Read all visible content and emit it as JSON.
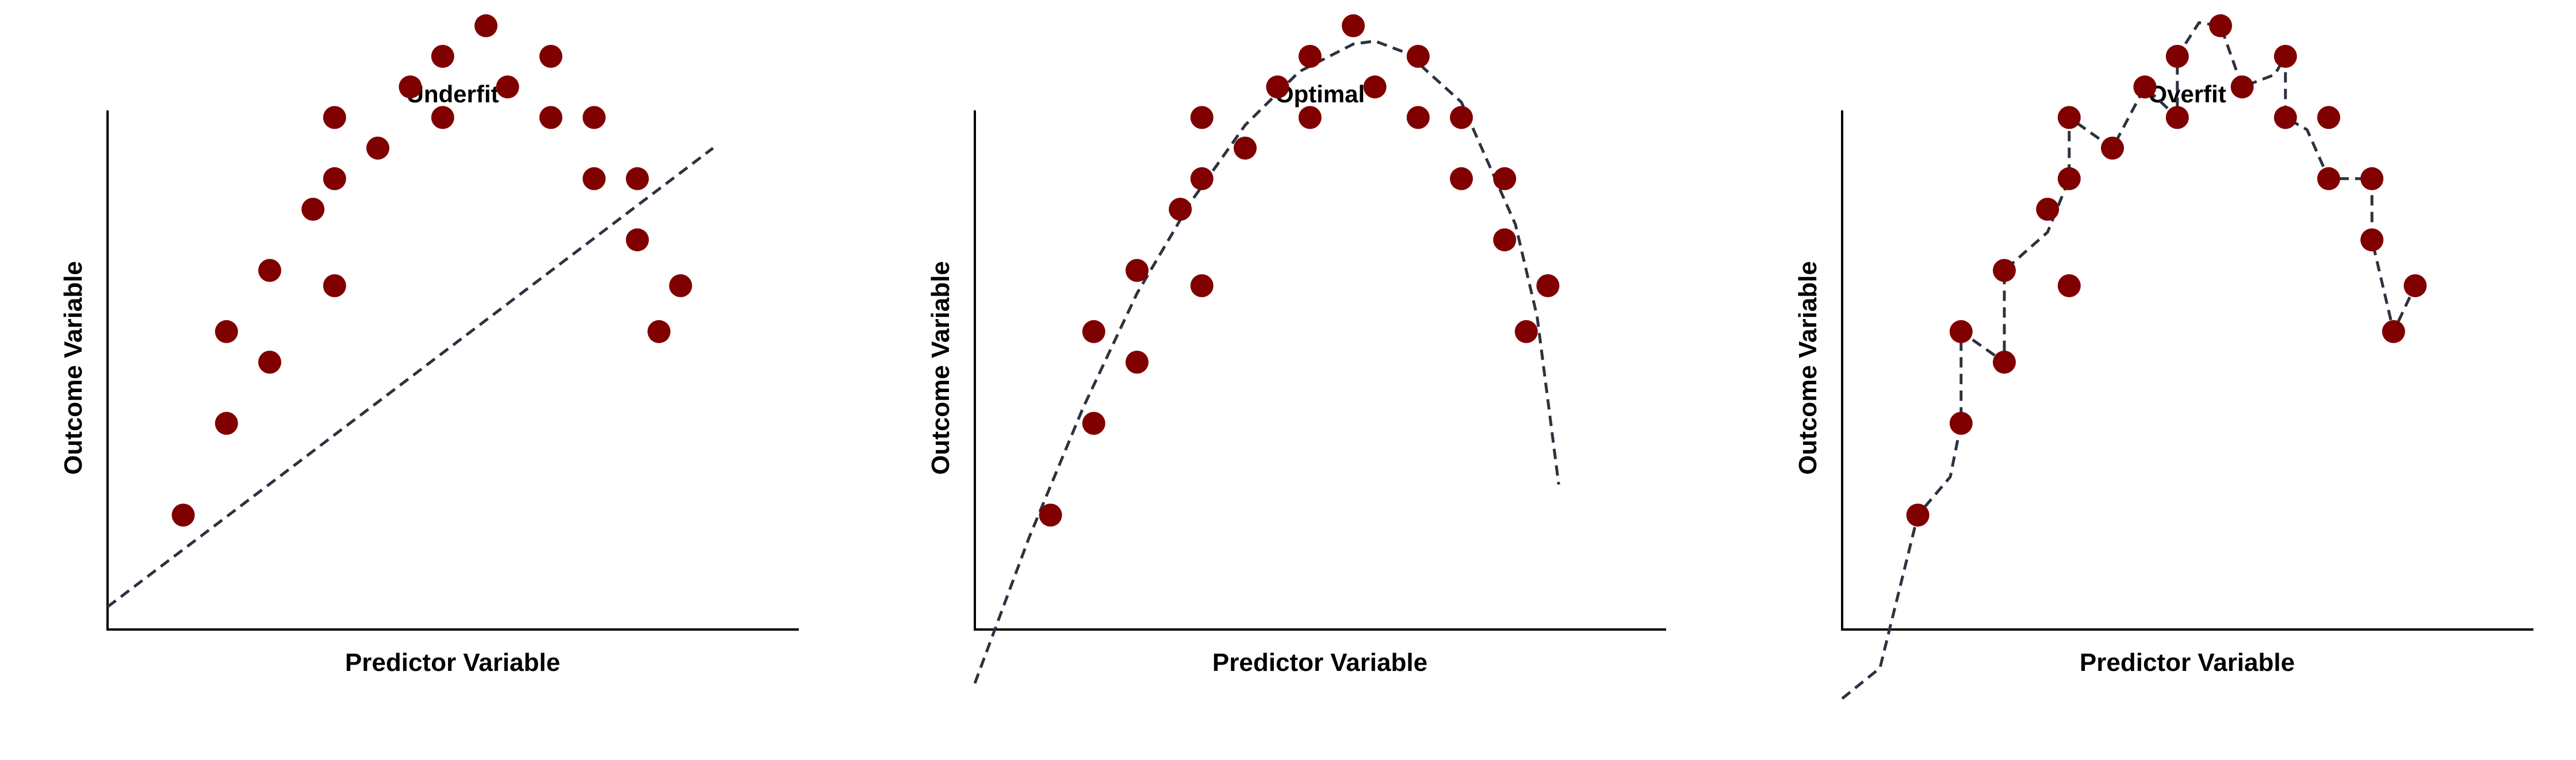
{
  "figure": {
    "point_color": "#800000",
    "curve_color": "#2b3340",
    "axis_color": "#000000"
  },
  "chart_data": [
    {
      "type": "scatter",
      "title": "Underfit",
      "xlabel": "Predictor Variable",
      "ylabel": "Outcome Variable",
      "points": [
        [
          0.7,
          1.5
        ],
        [
          1.1,
          2.1
        ],
        [
          1.1,
          2.7
        ],
        [
          1.5,
          2.5
        ],
        [
          1.5,
          3.1
        ],
        [
          1.9,
          3.5
        ],
        [
          2.1,
          3.0
        ],
        [
          2.1,
          3.7
        ],
        [
          2.1,
          4.1
        ],
        [
          2.5,
          3.9
        ],
        [
          2.8,
          4.3
        ],
        [
          3.1,
          4.1
        ],
        [
          3.1,
          4.5
        ],
        [
          3.5,
          4.7
        ],
        [
          3.7,
          4.3
        ],
        [
          4.1,
          4.5
        ],
        [
          4.1,
          4.1
        ],
        [
          4.5,
          3.7
        ],
        [
          4.5,
          4.1
        ],
        [
          4.9,
          3.7
        ],
        [
          4.9,
          3.3
        ],
        [
          5.1,
          2.7
        ],
        [
          5.3,
          3.0
        ]
      ],
      "fit": {
        "style": "dashed",
        "kind": "linear",
        "curve": [
          [
            0.0,
            0.9
          ],
          [
            5.6,
            3.9
          ]
        ]
      }
    },
    {
      "type": "scatter",
      "title": "Optimal",
      "xlabel": "Predictor Variable",
      "ylabel": "Outcome Variable",
      "points": [
        [
          0.7,
          1.5
        ],
        [
          1.1,
          2.1
        ],
        [
          1.1,
          2.7
        ],
        [
          1.5,
          2.5
        ],
        [
          1.5,
          3.1
        ],
        [
          1.9,
          3.5
        ],
        [
          2.1,
          3.0
        ],
        [
          2.1,
          3.7
        ],
        [
          2.1,
          4.1
        ],
        [
          2.5,
          3.9
        ],
        [
          2.8,
          4.3
        ],
        [
          3.1,
          4.1
        ],
        [
          3.1,
          4.5
        ],
        [
          3.5,
          4.7
        ],
        [
          3.7,
          4.3
        ],
        [
          4.1,
          4.5
        ],
        [
          4.1,
          4.1
        ],
        [
          4.5,
          3.7
        ],
        [
          4.5,
          4.1
        ],
        [
          4.9,
          3.7
        ],
        [
          4.9,
          3.3
        ],
        [
          5.1,
          2.7
        ],
        [
          5.3,
          3.0
        ]
      ],
      "fit": {
        "style": "dashed",
        "kind": "quadratic",
        "curve": [
          [
            0.0,
            0.4
          ],
          [
            0.5,
            1.35
          ],
          [
            1.0,
            2.2
          ],
          [
            1.5,
            2.95
          ],
          [
            2.0,
            3.55
          ],
          [
            2.5,
            4.05
          ],
          [
            3.0,
            4.4
          ],
          [
            3.5,
            4.58
          ],
          [
            3.7,
            4.6
          ],
          [
            4.0,
            4.52
          ],
          [
            4.5,
            4.2
          ],
          [
            5.0,
            3.4
          ],
          [
            5.2,
            2.8
          ],
          [
            5.4,
            1.7
          ]
        ]
      }
    },
    {
      "type": "scatter",
      "title": "Overfit",
      "xlabel": "Predictor Variable",
      "ylabel": "Outcome Variable",
      "points": [
        [
          0.7,
          1.5
        ],
        [
          1.1,
          2.1
        ],
        [
          1.1,
          2.7
        ],
        [
          1.5,
          2.5
        ],
        [
          1.5,
          3.1
        ],
        [
          1.9,
          3.5
        ],
        [
          2.1,
          3.0
        ],
        [
          2.1,
          3.7
        ],
        [
          2.1,
          4.1
        ],
        [
          2.5,
          3.9
        ],
        [
          2.8,
          4.3
        ],
        [
          3.1,
          4.1
        ],
        [
          3.1,
          4.5
        ],
        [
          3.5,
          4.7
        ],
        [
          3.7,
          4.3
        ],
        [
          4.1,
          4.5
        ],
        [
          4.1,
          4.1
        ],
        [
          4.5,
          3.7
        ],
        [
          4.5,
          4.1
        ],
        [
          4.9,
          3.7
        ],
        [
          4.9,
          3.3
        ],
        [
          5.1,
          2.7
        ],
        [
          5.3,
          3.0
        ]
      ],
      "fit": {
        "style": "dashed",
        "kind": "interpolating",
        "curve": [
          [
            0.0,
            0.3
          ],
          [
            0.35,
            0.5
          ],
          [
            0.7,
            1.5
          ],
          [
            1.0,
            1.75
          ],
          [
            1.1,
            2.1
          ],
          [
            1.1,
            2.7
          ],
          [
            1.5,
            2.5
          ],
          [
            1.5,
            3.1
          ],
          [
            1.9,
            3.35
          ],
          [
            2.1,
            3.7
          ],
          [
            2.1,
            4.1
          ],
          [
            2.5,
            3.9
          ],
          [
            2.8,
            4.3
          ],
          [
            3.1,
            4.1
          ],
          [
            3.1,
            4.5
          ],
          [
            3.3,
            4.72
          ],
          [
            3.5,
            4.7
          ],
          [
            3.7,
            4.3
          ],
          [
            4.0,
            4.38
          ],
          [
            4.1,
            4.5
          ],
          [
            4.1,
            4.1
          ],
          [
            4.3,
            4.02
          ],
          [
            4.5,
            3.7
          ],
          [
            4.9,
            3.7
          ],
          [
            4.9,
            3.3
          ],
          [
            5.1,
            2.7
          ],
          [
            5.3,
            3.0
          ]
        ]
      }
    }
  ]
}
